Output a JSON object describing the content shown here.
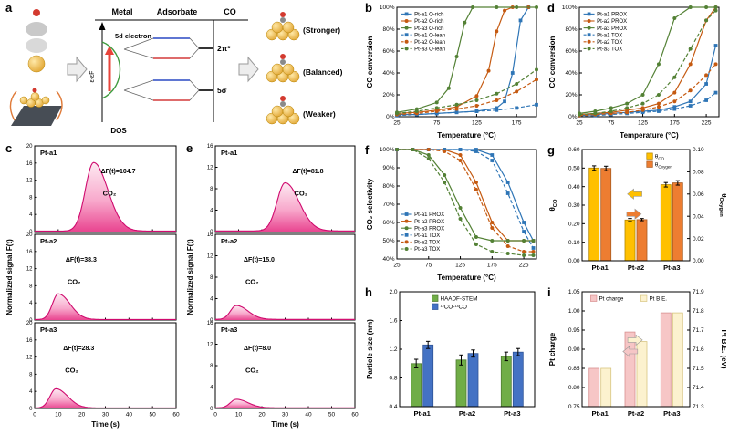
{
  "labels": {
    "a": "a",
    "b": "b",
    "c": "c",
    "d": "d",
    "e": "e",
    "f": "f",
    "g": "g",
    "h": "h",
    "i": "i"
  },
  "panel_a": {
    "headers": [
      "Metal",
      "Adsorbate",
      "CO"
    ],
    "five_d": "5d electron",
    "axis_label": "ε-εF",
    "dos": "DOS",
    "two_pi": "2π*",
    "five_sigma": "5σ",
    "stronger": "(Stronger)",
    "balanced": "(Balanced)",
    "weaker": "(Weaker)"
  },
  "chart_data": [
    {
      "panel": "b",
      "type": "line",
      "title": "",
      "xlabel": "Temperature (°C)",
      "ylabel": "CO conversion",
      "xlim": [
        25,
        200
      ],
      "xticks": [
        25,
        75,
        125,
        175
      ],
      "ylim": [
        0,
        100
      ],
      "yticks": [
        0,
        20,
        40,
        60,
        80,
        100
      ],
      "percent": true,
      "legend": {
        "x": 0.03,
        "y": 0.02
      },
      "series": [
        {
          "name": "Pt-a1 O-rich",
          "color": "#2e75b6",
          "marker": "square",
          "dash": false,
          "x": [
            25,
            50,
            75,
            100,
            125,
            150,
            160,
            170,
            180,
            190
          ],
          "y": [
            2,
            2,
            3,
            4,
            5,
            8,
            14,
            40,
            88,
            100
          ]
        },
        {
          "name": "Pt-a2 O-rich",
          "color": "#c55a11",
          "marker": "circle",
          "dash": false,
          "x": [
            25,
            50,
            75,
            100,
            125,
            140,
            150,
            160,
            170,
            190
          ],
          "y": [
            3,
            4,
            6,
            9,
            19,
            42,
            78,
            97,
            100,
            100
          ]
        },
        {
          "name": "Pt-a3 O-rich",
          "color": "#538135",
          "marker": "circle",
          "dash": false,
          "x": [
            25,
            50,
            75,
            90,
            100,
            110,
            120,
            150,
            175,
            200
          ],
          "y": [
            4,
            7,
            13,
            26,
            55,
            86,
            100,
            100,
            100,
            100
          ]
        },
        {
          "name": "Pt-a1 O-lean",
          "color": "#2e75b6",
          "marker": "square",
          "dash": true,
          "x": [
            25,
            50,
            75,
            100,
            125,
            150,
            175,
            200
          ],
          "y": [
            1,
            2,
            3,
            4,
            5,
            6,
            8,
            11
          ]
        },
        {
          "name": "Pt-a2 O-lean",
          "color": "#c55a11",
          "marker": "circle",
          "dash": true,
          "x": [
            25,
            50,
            75,
            100,
            125,
            150,
            175,
            200
          ],
          "y": [
            2,
            3,
            5,
            7,
            10,
            15,
            23,
            34
          ]
        },
        {
          "name": "Pt-a3 O-lean",
          "color": "#538135",
          "marker": "circle",
          "dash": true,
          "x": [
            25,
            50,
            75,
            100,
            125,
            150,
            175,
            200
          ],
          "y": [
            3,
            5,
            8,
            11,
            15,
            21,
            30,
            43
          ]
        }
      ]
    },
    {
      "panel": "d",
      "type": "line",
      "title": "",
      "xlabel": "Temperature (°C)",
      "ylabel": "CO conversion",
      "xlim": [
        25,
        245
      ],
      "xticks": [
        25,
        75,
        125,
        175,
        225
      ],
      "ylim": [
        0,
        100
      ],
      "yticks": [
        0,
        20,
        40,
        60,
        80,
        100
      ],
      "percent": true,
      "legend": {
        "x": 0.03,
        "y": 0.02
      },
      "series": [
        {
          "name": "Pt-a1 PROX",
          "color": "#2e75b6",
          "marker": "square",
          "dash": false,
          "x": [
            25,
            50,
            75,
            100,
            125,
            150,
            175,
            200,
            225,
            240
          ],
          "y": [
            1,
            2,
            3,
            4,
            5,
            6,
            9,
            14,
            30,
            65
          ]
        },
        {
          "name": "Pt-a2 PROX",
          "color": "#c55a11",
          "marker": "circle",
          "dash": false,
          "x": [
            25,
            50,
            75,
            100,
            125,
            150,
            175,
            200,
            225,
            240
          ],
          "y": [
            2,
            3,
            4,
            6,
            8,
            12,
            22,
            48,
            88,
            100
          ]
        },
        {
          "name": "Pt-a3 PROX",
          "color": "#538135",
          "marker": "circle",
          "dash": false,
          "x": [
            25,
            50,
            75,
            100,
            125,
            150,
            175,
            200,
            225,
            240
          ],
          "y": [
            3,
            5,
            8,
            12,
            20,
            48,
            90,
            100,
            100,
            100
          ]
        },
        {
          "name": "Pt-a1 TOX",
          "color": "#2e75b6",
          "marker": "square",
          "dash": true,
          "x": [
            25,
            50,
            75,
            100,
            125,
            150,
            175,
            200,
            225,
            240
          ],
          "y": [
            1,
            1,
            2,
            3,
            4,
            5,
            7,
            10,
            15,
            22
          ]
        },
        {
          "name": "Pt-a2 TOX",
          "color": "#c55a11",
          "marker": "circle",
          "dash": true,
          "x": [
            25,
            50,
            75,
            100,
            125,
            150,
            175,
            200,
            225,
            240
          ],
          "y": [
            1,
            2,
            3,
            4,
            6,
            9,
            14,
            24,
            38,
            48
          ]
        },
        {
          "name": "Pt-a3 TOX",
          "color": "#538135",
          "marker": "circle",
          "dash": true,
          "x": [
            25,
            50,
            75,
            100,
            125,
            150,
            175,
            200,
            225,
            240
          ],
          "y": [
            2,
            3,
            5,
            8,
            12,
            20,
            36,
            62,
            88,
            97
          ]
        }
      ]
    },
    {
      "panel": "f",
      "type": "line",
      "title": "",
      "xlabel": "Temperature (°C)",
      "ylabel": "CO₂ selectivity",
      "xlim": [
        25,
        245
      ],
      "xticks": [
        25,
        75,
        125,
        175,
        225
      ],
      "ylim": [
        40,
        100
      ],
      "yticks": [
        40,
        50,
        60,
        70,
        80,
        90,
        100
      ],
      "percent": true,
      "legend": {
        "x": 0.03,
        "y": 0.55
      },
      "series": [
        {
          "name": "Pt-a1 PROX",
          "color": "#2e75b6",
          "marker": "square",
          "dash": false,
          "x": [
            25,
            50,
            75,
            100,
            125,
            150,
            175,
            200,
            225,
            240
          ],
          "y": [
            100,
            100,
            100,
            100,
            100,
            100,
            97,
            82,
            60,
            50
          ]
        },
        {
          "name": "Pt-a2 PROX",
          "color": "#c55a11",
          "marker": "circle",
          "dash": false,
          "x": [
            25,
            50,
            75,
            100,
            125,
            150,
            175,
            200,
            225,
            240
          ],
          "y": [
            100,
            100,
            100,
            100,
            97,
            82,
            60,
            50,
            50,
            50
          ]
        },
        {
          "name": "Pt-a3 PROX",
          "color": "#538135",
          "marker": "circle",
          "dash": false,
          "x": [
            25,
            50,
            75,
            100,
            125,
            150,
            175,
            200,
            225,
            240
          ],
          "y": [
            100,
            100,
            97,
            86,
            68,
            52,
            50,
            50,
            50,
            50
          ]
        },
        {
          "name": "Pt-a1 TOX",
          "color": "#2e75b6",
          "marker": "square",
          "dash": true,
          "x": [
            25,
            50,
            75,
            100,
            125,
            150,
            175,
            200,
            225,
            240
          ],
          "y": [
            100,
            100,
            100,
            100,
            100,
            99,
            94,
            76,
            55,
            46
          ]
        },
        {
          "name": "Pt-a2 TOX",
          "color": "#c55a11",
          "marker": "circle",
          "dash": true,
          "x": [
            25,
            50,
            75,
            100,
            125,
            150,
            175,
            200,
            225,
            240
          ],
          "y": [
            100,
            100,
            100,
            99,
            94,
            78,
            57,
            47,
            44,
            44
          ]
        },
        {
          "name": "Pt-a3 TOX",
          "color": "#538135",
          "marker": "circle",
          "dash": true,
          "x": [
            25,
            50,
            75,
            100,
            125,
            150,
            175,
            200,
            225,
            240
          ],
          "y": [
            100,
            100,
            95,
            82,
            62,
            48,
            44,
            43,
            42,
            42
          ]
        }
      ]
    },
    {
      "panel": "c",
      "type": "peaks",
      "xlabel": "Time (s)",
      "ylabel": "Normalized signal F(t)",
      "xlim": [
        0,
        60
      ],
      "xticks": [
        0,
        10,
        20,
        30,
        40,
        50,
        60
      ],
      "subplots": [
        {
          "name": "Pt-a1",
          "delta": "ΔF(t)=104.7",
          "species": "CO₂",
          "ymax": 20,
          "yticks": [
            0,
            4,
            8,
            12,
            16,
            20
          ],
          "peak": {
            "center": 25,
            "height": 16,
            "wl": 3.5,
            "wr": 6
          }
        },
        {
          "name": "Pt-a2",
          "delta": "ΔF(t)=38.3",
          "species": "CO₂",
          "ymax": 20,
          "yticks": [
            0,
            4,
            8,
            12,
            16,
            20
          ],
          "peak": {
            "center": 10,
            "height": 6,
            "wl": 2.5,
            "wr": 5
          }
        },
        {
          "name": "Pt-a3",
          "delta": "ΔF(t)=28.3",
          "species": "CO₂",
          "ymax": 20,
          "yticks": [
            0,
            4,
            8,
            12,
            16,
            20
          ],
          "peak": {
            "center": 9,
            "height": 4.5,
            "wl": 2.5,
            "wr": 5
          }
        }
      ]
    },
    {
      "panel": "e",
      "type": "peaks",
      "xlabel": "Time (s)",
      "ylabel": "Normalized signal F(t)",
      "xlim": [
        0,
        60
      ],
      "xticks": [
        0,
        10,
        20,
        30,
        40,
        50,
        60
      ],
      "subplots": [
        {
          "name": "Pt-a1",
          "delta": "ΔF(t)=81.8",
          "species": "CO₂",
          "ymax": 16,
          "yticks": [
            0,
            4,
            8,
            12,
            16
          ],
          "peak": {
            "center": 30,
            "height": 9,
            "wl": 3.5,
            "wr": 6
          }
        },
        {
          "name": "Pt-a2",
          "delta": "ΔF(t)=15.0",
          "species": "CO₂",
          "ymax": 16,
          "yticks": [
            0,
            4,
            8,
            12,
            16
          ],
          "peak": {
            "center": 9,
            "height": 2.6,
            "wl": 2.5,
            "wr": 5
          }
        },
        {
          "name": "Pt-a3",
          "delta": "ΔF(t)=8.0",
          "species": "CO₂",
          "ymax": 16,
          "yticks": [
            0,
            4,
            8,
            12,
            16
          ],
          "peak": {
            "center": 9,
            "height": 1.6,
            "wl": 2.5,
            "wr": 5
          }
        }
      ]
    },
    {
      "panel": "g",
      "type": "bars",
      "groups": [
        "Pt-a1",
        "Pt-a2",
        "Pt-a3"
      ],
      "left": {
        "label": "θ_CO",
        "lim": [
          0,
          0.6
        ],
        "ticks": [
          0,
          0.1,
          0.2,
          0.3,
          0.4,
          0.5,
          0.6
        ],
        "digits": 2
      },
      "right": {
        "label": "θ_Oxygen",
        "lim": [
          0,
          0.1
        ],
        "ticks": [
          0,
          0.02,
          0.04,
          0.06,
          0.08,
          0.1
        ],
        "digits": 2
      },
      "series": [
        {
          "name": "θ_CO",
          "axis": "left",
          "color": "#ffc000",
          "stroke": "#b38600",
          "values": [
            0.5,
            0.22,
            0.41
          ],
          "errors": [
            0.012,
            0.008,
            0.012
          ]
        },
        {
          "name": "θ_Oxygen",
          "axis": "right",
          "color": "#ed7d31",
          "stroke": "#a85a20",
          "values": [
            0.083,
            0.037,
            0.07
          ],
          "errors": [
            0.002,
            0.001,
            0.002
          ]
        }
      ],
      "legend": {
        "x": 0.6,
        "y": 0.02,
        "layout": "v"
      },
      "arrows": [
        {
          "dir": "left",
          "color": "#ffc000",
          "fx": 0.42,
          "fy": 0.4
        },
        {
          "dir": "right",
          "color": "#ed7d31",
          "fx": 0.55,
          "fy": 0.58
        }
      ]
    },
    {
      "panel": "h",
      "type": "bars",
      "groups": [
        "Pt-a1",
        "Pt-a2",
        "Pt-a3"
      ],
      "left": {
        "label": "Particle size (nm)",
        "lim": [
          0.4,
          2.0
        ],
        "ticks": [
          0.4,
          0.8,
          1.2,
          1.6,
          2.0
        ],
        "digits": 1
      },
      "right": null,
      "series": [
        {
          "name": "HAADF-STEM",
          "color": "#70ad47",
          "stroke": "#4e7a31",
          "values": [
            1.0,
            1.05,
            1.1
          ],
          "errors": [
            0.06,
            0.07,
            0.06
          ]
        },
        {
          "name": "¹²CO-¹³CO",
          "color": "#4472c4",
          "stroke": "#2f5496",
          "values": [
            1.26,
            1.14,
            1.16
          ],
          "errors": [
            0.05,
            0.05,
            0.05
          ]
        }
      ],
      "legend": {
        "x": 0.24,
        "y": 0.02,
        "layout": "v"
      },
      "arrows": []
    },
    {
      "panel": "i",
      "type": "bars",
      "groups": [
        "Pt-a1",
        "Pt-a2",
        "Pt-a3"
      ],
      "left": {
        "label": "Pt charge",
        "lim": [
          0.75,
          1.05
        ],
        "ticks": [
          0.75,
          0.8,
          0.85,
          0.9,
          0.95,
          1.0,
          1.05
        ],
        "digits": 2
      },
      "right": {
        "label": "Pt B.E. (eV)",
        "lim": [
          71.3,
          71.9
        ],
        "ticks": [
          71.3,
          71.4,
          71.5,
          71.6,
          71.7,
          71.8,
          71.9
        ],
        "digits": 1
      },
      "series": [
        {
          "name": "Pt charge",
          "axis": "left",
          "color": "#f6c6c6",
          "stroke": "#d89090",
          "values": [
            0.85,
            0.945,
            0.995
          ]
        },
        {
          "name": "Pt B.E.",
          "axis": "right",
          "color": "#fcf2cf",
          "stroke": "#d8c580",
          "values": [
            71.5,
            71.64,
            71.79
          ]
        }
      ],
      "legend": {
        "x": 0.08,
        "y": 0.02,
        "layout": "h"
      },
      "arrows": [
        {
          "dir": "left",
          "color": "#f6c6c6",
          "fx": 0.38,
          "fy": 0.52
        },
        {
          "dir": "right",
          "color": "#fcf2cf",
          "fx": 0.56,
          "fy": 0.42
        }
      ]
    }
  ]
}
